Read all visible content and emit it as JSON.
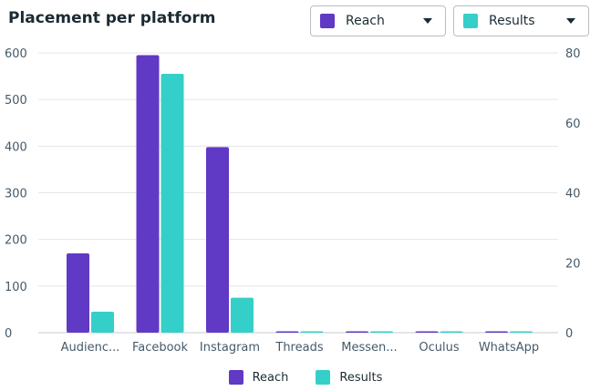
{
  "header": {
    "title": "Placement per platform",
    "dropdown_reach": "Reach",
    "dropdown_results": "Results"
  },
  "colors": {
    "reach": "#6039c4",
    "results": "#35cfc9"
  },
  "legend": {
    "reach": "Reach",
    "results": "Results"
  },
  "chart_data": {
    "type": "bar",
    "title": "Placement per platform",
    "categories": [
      "Audienc...",
      "Facebook",
      "Instagram",
      "Threads",
      "Messen...",
      "Oculus",
      "WhatsApp"
    ],
    "series": [
      {
        "name": "Reach",
        "axis": "left",
        "values": [
          170,
          595,
          398,
          2,
          1,
          1,
          1
        ]
      },
      {
        "name": "Results",
        "axis": "right",
        "values": [
          6,
          74,
          10,
          0.2,
          0.2,
          0.2,
          0.2
        ]
      }
    ],
    "y_left": {
      "lim": [
        0,
        600
      ],
      "ticks": [
        0,
        100,
        200,
        300,
        400,
        500,
        600
      ]
    },
    "y_right": {
      "lim": [
        0,
        80
      ],
      "ticks": [
        0,
        20,
        40,
        60,
        80
      ]
    },
    "grid": true,
    "legend_position": "bottom-center"
  }
}
